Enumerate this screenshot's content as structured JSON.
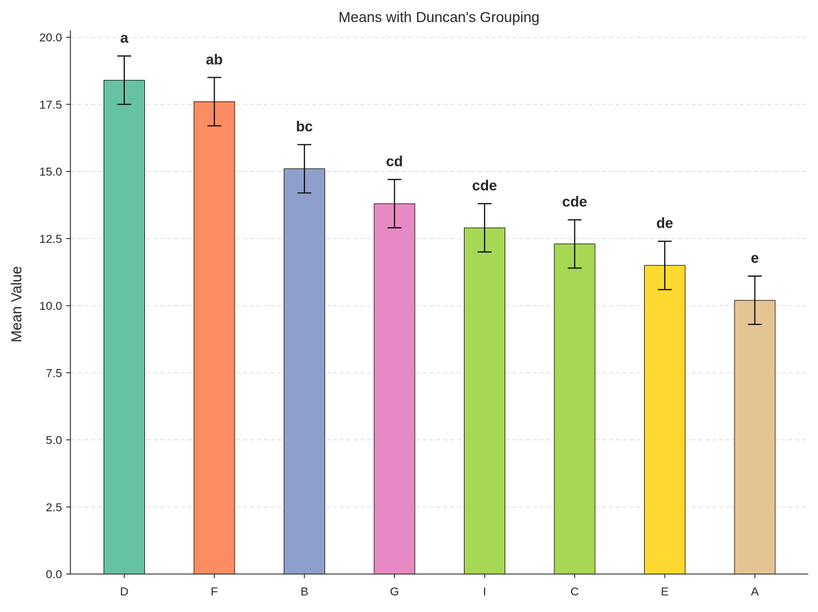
{
  "chart_data": {
    "type": "bar",
    "title": "Means with Duncan's Grouping",
    "xlabel": "",
    "ylabel": "Mean Value",
    "ylim": [
      0,
      20.3
    ],
    "yticks": [
      "0.0",
      "2.5",
      "5.0",
      "7.5",
      "10.0",
      "12.5",
      "15.0",
      "17.5",
      "20.0"
    ],
    "ytick_values": [
      0,
      2.5,
      5,
      7.5,
      10,
      12.5,
      15,
      17.5,
      20
    ],
    "grid": "y-dashed",
    "categories": [
      "D",
      "F",
      "B",
      "G",
      "I",
      "C",
      "E",
      "A"
    ],
    "values": [
      18.4,
      17.6,
      15.1,
      13.8,
      12.9,
      12.3,
      11.5,
      10.2
    ],
    "errors": [
      0.9,
      0.9,
      0.9,
      0.9,
      0.9,
      0.9,
      0.9,
      0.9
    ],
    "groups": [
      "a",
      "ab",
      "bc",
      "cd",
      "cde",
      "cde",
      "de",
      "e"
    ],
    "colors": [
      "#66c2a5",
      "#fc8d62",
      "#8da0cb",
      "#e78ac3",
      "#a6d854",
      "#a6d854",
      "#ffd92f",
      "#e5c494"
    ]
  }
}
